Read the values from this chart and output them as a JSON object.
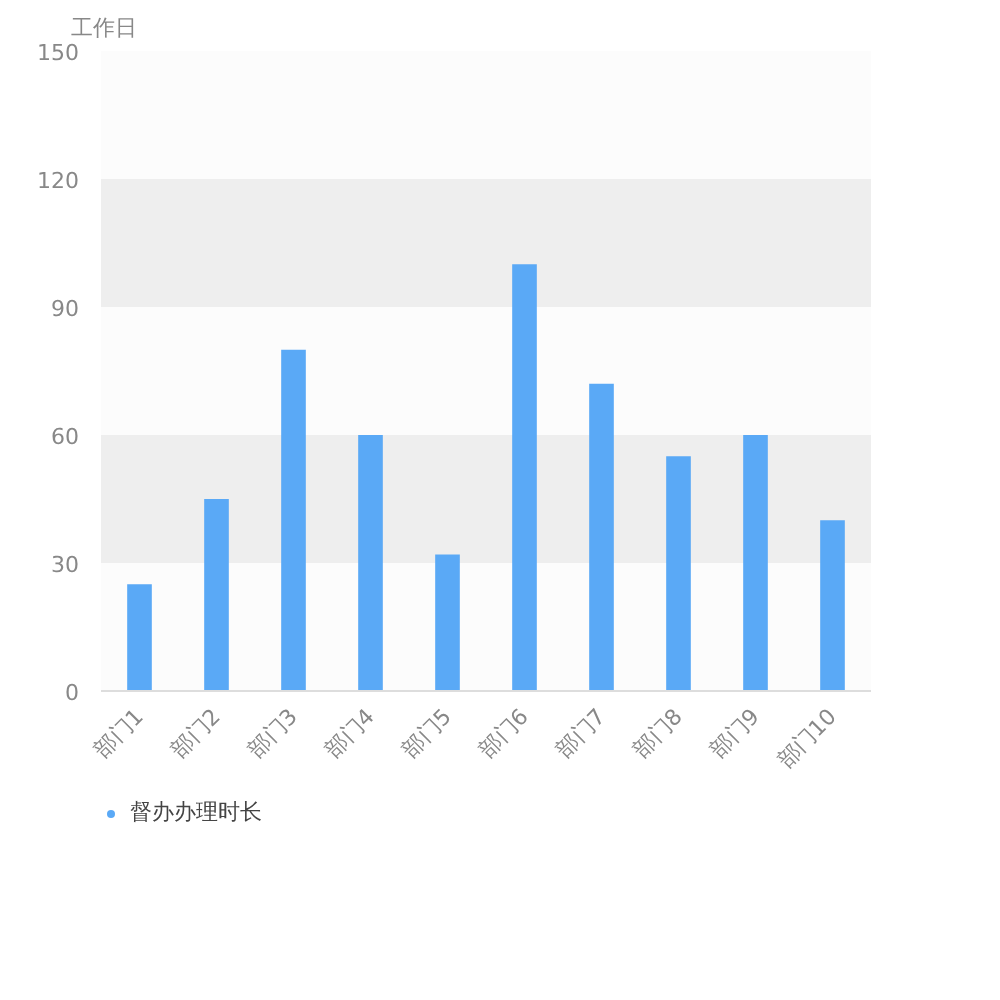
{
  "chart_data": {
    "type": "bar",
    "ylabel": "工作日",
    "categories": [
      "部门1",
      "部门2",
      "部门3",
      "部门4",
      "部门5",
      "部门6",
      "部门7",
      "部门8",
      "部门9",
      "部门10"
    ],
    "series": [
      {
        "name": "督办办理时长",
        "color": "#5aa9f6",
        "values": [
          25,
          45,
          80,
          60,
          32,
          100,
          72,
          55,
          60,
          40
        ]
      }
    ],
    "ylim": [
      0,
      150
    ],
    "yticks": [
      0,
      30,
      60,
      90,
      120,
      150
    ],
    "grid": false,
    "legend": "bottom left",
    "bands": [
      {
        "axis": "y",
        "from": 30,
        "to": 60,
        "color": "#eeeeee"
      },
      {
        "axis": "y",
        "from": 90,
        "to": 120,
        "color": "#eeeeee"
      }
    ]
  }
}
